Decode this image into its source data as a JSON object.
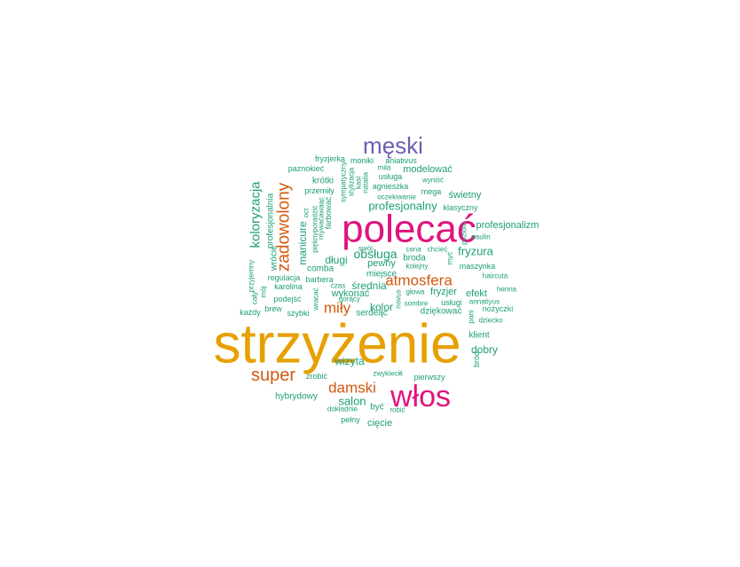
{
  "colors": {
    "gold": "#E6A000",
    "magenta": "#E0147D",
    "purple": "#6E5EB0",
    "orange": "#D35A0F",
    "teal": "#1B9E77"
  },
  "words": [
    {
      "text": "strzyżenie",
      "color": "gold"
    },
    {
      "text": "polecać",
      "color": "magenta"
    },
    {
      "text": "włos",
      "color": "magenta"
    },
    {
      "text": "męski",
      "color": "purple"
    },
    {
      "text": "zadowolony",
      "color": "orange"
    },
    {
      "text": "atmosfera",
      "color": "orange"
    },
    {
      "text": "super",
      "color": "orange"
    },
    {
      "text": "damski",
      "color": "orange"
    },
    {
      "text": "miły",
      "color": "orange"
    },
    {
      "text": "koloryzacja",
      "color": "teal"
    },
    {
      "text": "profesjonalny",
      "color": "teal"
    },
    {
      "text": "obsługa",
      "color": "teal"
    },
    {
      "text": "fryzura",
      "color": "teal"
    },
    {
      "text": "długi",
      "color": "teal"
    },
    {
      "text": "średnia",
      "color": "teal"
    },
    {
      "text": "kolor",
      "color": "teal"
    },
    {
      "text": "salon",
      "color": "teal"
    },
    {
      "text": "wizyta",
      "color": "teal"
    },
    {
      "text": "dobry",
      "color": "teal"
    },
    {
      "text": "modelować",
      "color": "teal"
    },
    {
      "text": "świetny",
      "color": "teal"
    },
    {
      "text": "manicure",
      "color": "teal"
    },
    {
      "text": "profesjonalizm",
      "color": "teal"
    },
    {
      "text": "profesjonalnia",
      "color": "teal"
    },
    {
      "text": "wrócić",
      "color": "teal"
    },
    {
      "text": "pewny",
      "color": "teal"
    },
    {
      "text": "wykonać",
      "color": "teal"
    },
    {
      "text": "efekt",
      "color": "teal"
    },
    {
      "text": "fryzjer",
      "color": "teal"
    },
    {
      "text": "hybrydowy",
      "color": "teal"
    },
    {
      "text": "cięcie",
      "color": "teal"
    },
    {
      "text": "być",
      "color": "teal"
    },
    {
      "text": "klient",
      "color": "teal"
    },
    {
      "text": "dziękować",
      "color": "teal"
    },
    {
      "text": "serdeąc",
      "color": "teal"
    },
    {
      "text": "miejsce",
      "color": "teal"
    },
    {
      "text": "broda",
      "color": "teal"
    },
    {
      "text": "comba",
      "color": "teal"
    },
    {
      "text": "maszynka",
      "color": "teal"
    },
    {
      "text": "krótki",
      "color": "teal"
    },
    {
      "text": "usługa",
      "color": "teal"
    },
    {
      "text": "agnieszka",
      "color": "teal"
    },
    {
      "text": "klasyczny",
      "color": "teal"
    },
    {
      "text": "fryzjerka",
      "color": "teal"
    },
    {
      "text": "moniki",
      "color": "teal"
    },
    {
      "text": "aniativus",
      "color": "teal"
    },
    {
      "text": "mila",
      "color": "teal"
    },
    {
      "text": "paznokieć",
      "color": "teal"
    },
    {
      "text": "wyniść",
      "color": "teal"
    },
    {
      "text": "mega",
      "color": "teal"
    },
    {
      "text": "oczekiwanie",
      "color": "teal"
    },
    {
      "text": "przemiły",
      "color": "teal"
    },
    {
      "text": "natalia",
      "color": "teal"
    },
    {
      "text": "kasi",
      "color": "teal"
    },
    {
      "text": "stylizacja",
      "color": "teal"
    },
    {
      "text": "sympatyczny",
      "color": "teal"
    },
    {
      "text": "farbować",
      "color": "teal"
    },
    {
      "text": "oct",
      "color": "teal"
    },
    {
      "text": "pięknyporadzić",
      "color": "teal"
    },
    {
      "text": "mywaćawaąc",
      "color": "teal"
    },
    {
      "text": "swój",
      "color": "teal"
    },
    {
      "text": "cena",
      "color": "teal"
    },
    {
      "text": "chcieć",
      "color": "teal"
    },
    {
      "text": "paulin",
      "color": "teal"
    },
    {
      "text": "poziom",
      "color": "teal"
    },
    {
      "text": "kolejny",
      "color": "teal"
    },
    {
      "text": "myć",
      "color": "teal"
    },
    {
      "text": "haircuta",
      "color": "teal"
    },
    {
      "text": "henna",
      "color": "teal"
    },
    {
      "text": "regulacja",
      "color": "teal"
    },
    {
      "text": "barbera",
      "color": "teal"
    },
    {
      "text": "gorący",
      "color": "teal"
    },
    {
      "text": "karolina",
      "color": "teal"
    },
    {
      "text": "czas",
      "color": "teal"
    },
    {
      "text": "głowa",
      "color": "teal"
    },
    {
      "text": "podejść",
      "color": "teal"
    },
    {
      "text": "wracać",
      "color": "teal"
    },
    {
      "text": "novus",
      "color": "teal"
    },
    {
      "text": "sombre",
      "color": "teal"
    },
    {
      "text": "usługi",
      "color": "teal"
    },
    {
      "text": "annatiyus",
      "color": "teal"
    },
    {
      "text": "pani",
      "color": "teal"
    },
    {
      "text": "nożyczki",
      "color": "teal"
    },
    {
      "text": "dziecko",
      "color": "teal"
    },
    {
      "text": "brew",
      "color": "teal"
    },
    {
      "text": "szybki",
      "color": "teal"
    },
    {
      "text": "każdy",
      "color": "teal"
    },
    {
      "text": "cały",
      "color": "teal"
    },
    {
      "text": "przyjemny",
      "color": "teal"
    },
    {
      "text": "mój",
      "color": "teal"
    },
    {
      "text": "zrobić",
      "color": "teal"
    },
    {
      "text": "zwykleciłi",
      "color": "teal"
    },
    {
      "text": "pierwszy",
      "color": "teal"
    },
    {
      "text": "bród",
      "color": "teal"
    },
    {
      "text": "dokładnie",
      "color": "teal"
    },
    {
      "text": "robić",
      "color": "teal"
    },
    {
      "text": "pełny",
      "color": "teal"
    }
  ]
}
